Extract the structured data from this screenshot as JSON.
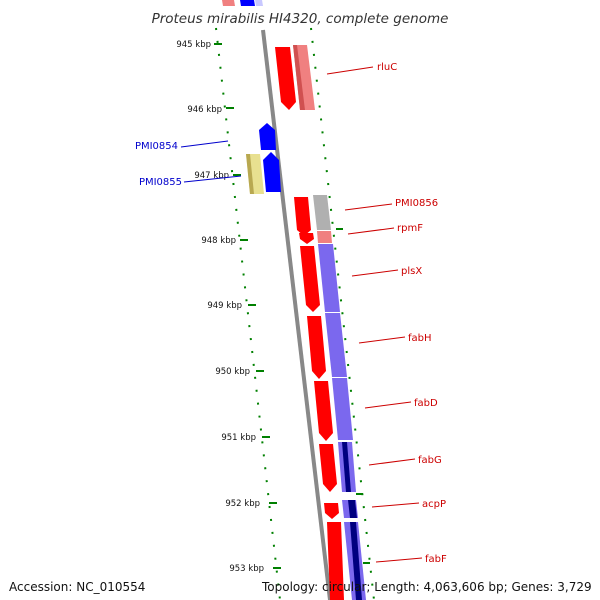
{
  "title": "Proteus mirabilis HI4320, complete genome",
  "footer": {
    "accession": "Accession: NC_010554",
    "summary": "Topology: circular; Length: 4,063,606 bp; Genes: 3,729"
  },
  "ruler_ticks": [
    "945 kbp",
    "946 kbp",
    "947 kbp",
    "948 kbp",
    "949 kbp",
    "950 kbp",
    "951 kbp",
    "952 kbp",
    "953 kbp"
  ],
  "genes": [
    {
      "name": "rluC",
      "strand": "reverse",
      "color": "#ff0000"
    },
    {
      "name": "PMI0854",
      "strand": "forward",
      "color": "#0000ff"
    },
    {
      "name": "PMI0855",
      "strand": "forward",
      "color": "#0000ff"
    },
    {
      "name": "PMI0856",
      "strand": "reverse",
      "color": "#ff0000"
    },
    {
      "name": "rpmF",
      "strand": "reverse",
      "color": "#ff0000"
    },
    {
      "name": "plsX",
      "strand": "reverse",
      "color": "#ff0000"
    },
    {
      "name": "fabH",
      "strand": "reverse",
      "color": "#ff0000"
    },
    {
      "name": "fabD",
      "strand": "reverse",
      "color": "#ff0000"
    },
    {
      "name": "fabG",
      "strand": "reverse",
      "color": "#ff0000"
    },
    {
      "name": "acpP",
      "strand": "reverse",
      "color": "#ff0000"
    },
    {
      "name": "fabF",
      "strand": "reverse",
      "color": "#ff0000"
    }
  ],
  "colors": {
    "backbone": "#888888",
    "ruler": "#008000",
    "forward_label": "#0000cc",
    "reverse_label": "#cc0000",
    "cog_light_red": "#f08080",
    "cog_purple": "#7b68ee",
    "cog_navy": "#000080",
    "cog_khaki": "#e8e090",
    "cog_grey": "#b0b0b0"
  }
}
